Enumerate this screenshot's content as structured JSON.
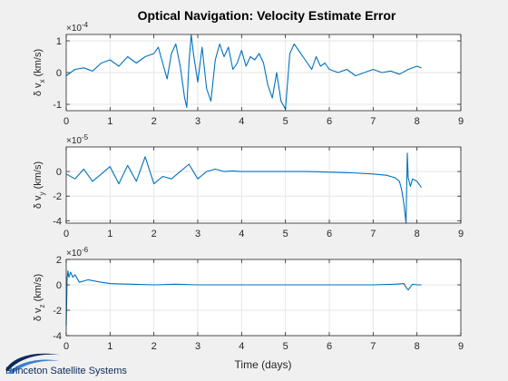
{
  "chart_data": {
    "title": "Optical Navigation: Velocity Estimate Error",
    "xlabel": "Time (days)",
    "series_color": "#0072bd",
    "grid": true,
    "subplots": [
      {
        "type": "line",
        "ylabel": "δ v_x (km/s)",
        "ylabel_main": "δ v",
        "ylabel_sub": "x",
        "ylabel_unit": " (km/s)",
        "multiplier": "×10",
        "exponent": "-4",
        "xlim": [
          0,
          9
        ],
        "ylim": [
          -1.2,
          1.2
        ],
        "xticks": [
          "0",
          "1",
          "2",
          "3",
          "4",
          "5",
          "6",
          "7",
          "8",
          "9"
        ],
        "yticks": [
          {
            "v": -1,
            "label": "-1"
          },
          {
            "v": 0,
            "label": "0"
          },
          {
            "v": 1,
            "label": "1"
          }
        ],
        "x": [
          0,
          0.2,
          0.4,
          0.6,
          0.8,
          1.0,
          1.2,
          1.4,
          1.6,
          1.8,
          2.0,
          2.1,
          2.2,
          2.3,
          2.4,
          2.5,
          2.6,
          2.7,
          2.75,
          2.8,
          2.85,
          2.9,
          3.0,
          3.1,
          3.2,
          3.3,
          3.4,
          3.5,
          3.6,
          3.7,
          3.8,
          3.9,
          4.0,
          4.1,
          4.2,
          4.3,
          4.4,
          4.5,
          4.6,
          4.7,
          4.8,
          4.9,
          5.0,
          5.1,
          5.2,
          5.3,
          5.4,
          5.5,
          5.6,
          5.7,
          5.8,
          5.9,
          6.0,
          6.2,
          6.4,
          6.6,
          6.8,
          7.0,
          7.2,
          7.4,
          7.6,
          7.8,
          8.0,
          8.1
        ],
        "y": [
          -0.1,
          0.1,
          0.15,
          0.05,
          0.3,
          0.4,
          0.2,
          0.5,
          0.3,
          0.5,
          0.6,
          0.8,
          0.3,
          -0.2,
          0.6,
          0.9,
          0.2,
          -0.8,
          -1.1,
          0.3,
          1.2,
          0.6,
          -0.3,
          0.8,
          -0.5,
          -0.9,
          0.4,
          0.9,
          0.5,
          0.8,
          0.1,
          0.3,
          0.7,
          0.2,
          0.5,
          0.4,
          0.6,
          0.3,
          -0.4,
          -0.8,
          0.0,
          -0.9,
          -1.15,
          0.6,
          0.9,
          0.7,
          0.5,
          0.3,
          0.1,
          0.5,
          0.2,
          0.3,
          0.1,
          0.0,
          0.1,
          -0.1,
          0.0,
          0.1,
          0.0,
          0.05,
          -0.05,
          0.1,
          0.2,
          0.15
        ]
      },
      {
        "type": "line",
        "ylabel": "δ v_y (km/s)",
        "ylabel_main": "δ v",
        "ylabel_sub": "y",
        "ylabel_unit": " (km/s)",
        "multiplier": "×10",
        "exponent": "-5",
        "xlim": [
          0,
          9
        ],
        "ylim": [
          -4.2,
          2.0
        ],
        "xticks": [
          "0",
          "1",
          "2",
          "3",
          "4",
          "5",
          "6",
          "7",
          "8",
          "9"
        ],
        "yticks": [
          {
            "v": -4,
            "label": "-4"
          },
          {
            "v": -2,
            "label": "-2"
          },
          {
            "v": 0,
            "label": "0"
          }
        ],
        "x": [
          0,
          0.2,
          0.4,
          0.6,
          0.8,
          1.0,
          1.2,
          1.4,
          1.6,
          1.8,
          2.0,
          2.2,
          2.4,
          2.6,
          2.8,
          3.0,
          3.2,
          3.4,
          3.6,
          3.8,
          4.0,
          4.5,
          5.0,
          5.5,
          6.0,
          6.5,
          7.0,
          7.3,
          7.5,
          7.6,
          7.65,
          7.7,
          7.75,
          7.78,
          7.8,
          7.85,
          7.9,
          8.0,
          8.1
        ],
        "y": [
          -0.2,
          -0.6,
          0.2,
          -0.8,
          -0.2,
          0.4,
          -1.0,
          0.5,
          -0.8,
          1.2,
          -1.0,
          -0.4,
          -0.6,
          0.0,
          0.6,
          -0.6,
          0.0,
          0.2,
          0.0,
          0.05,
          0.0,
          0.0,
          0.0,
          0.0,
          -0.05,
          -0.1,
          -0.2,
          -0.3,
          -0.5,
          -0.8,
          -1.5,
          -2.6,
          -4.2,
          1.5,
          -0.5,
          -1.2,
          -0.6,
          -0.8,
          -1.3
        ]
      },
      {
        "type": "line",
        "ylabel": "δ v_z (km/s)",
        "ylabel_main": "δ v",
        "ylabel_sub": "z",
        "ylabel_unit": " (km/s)",
        "multiplier": "×10",
        "exponent": "-6",
        "xlim": [
          0,
          9
        ],
        "ylim": [
          -4.0,
          2.0
        ],
        "xticks": [
          "0",
          "1",
          "2",
          "3",
          "4",
          "5",
          "6",
          "7",
          "8",
          "9"
        ],
        "yticks": [
          {
            "v": -4,
            "label": "-4"
          },
          {
            "v": -2,
            "label": "-2"
          },
          {
            "v": 0,
            "label": "0"
          },
          {
            "v": 2,
            "label": "2"
          }
        ],
        "x": [
          0,
          0.02,
          0.04,
          0.06,
          0.1,
          0.15,
          0.2,
          0.3,
          0.5,
          0.8,
          1.0,
          1.5,
          2.0,
          2.5,
          3.0,
          4.0,
          5.0,
          6.0,
          7.0,
          7.5,
          7.7,
          7.75,
          7.8,
          7.9,
          8.0,
          8.1
        ],
        "y": [
          -3.2,
          0.5,
          1.1,
          0.6,
          1.0,
          0.6,
          0.8,
          0.2,
          0.4,
          0.2,
          0.1,
          0.05,
          0.0,
          0.05,
          0.0,
          0.0,
          0.0,
          0.0,
          0.0,
          0.05,
          0.1,
          -0.2,
          -0.4,
          0.05,
          0.0,
          0.0
        ]
      }
    ]
  },
  "logo": {
    "text": "Princeton Satellite Systems",
    "colors": {
      "dark": "#0b2a5a",
      "light": "#3b7fd0"
    }
  },
  "background": "#f0f0f0"
}
